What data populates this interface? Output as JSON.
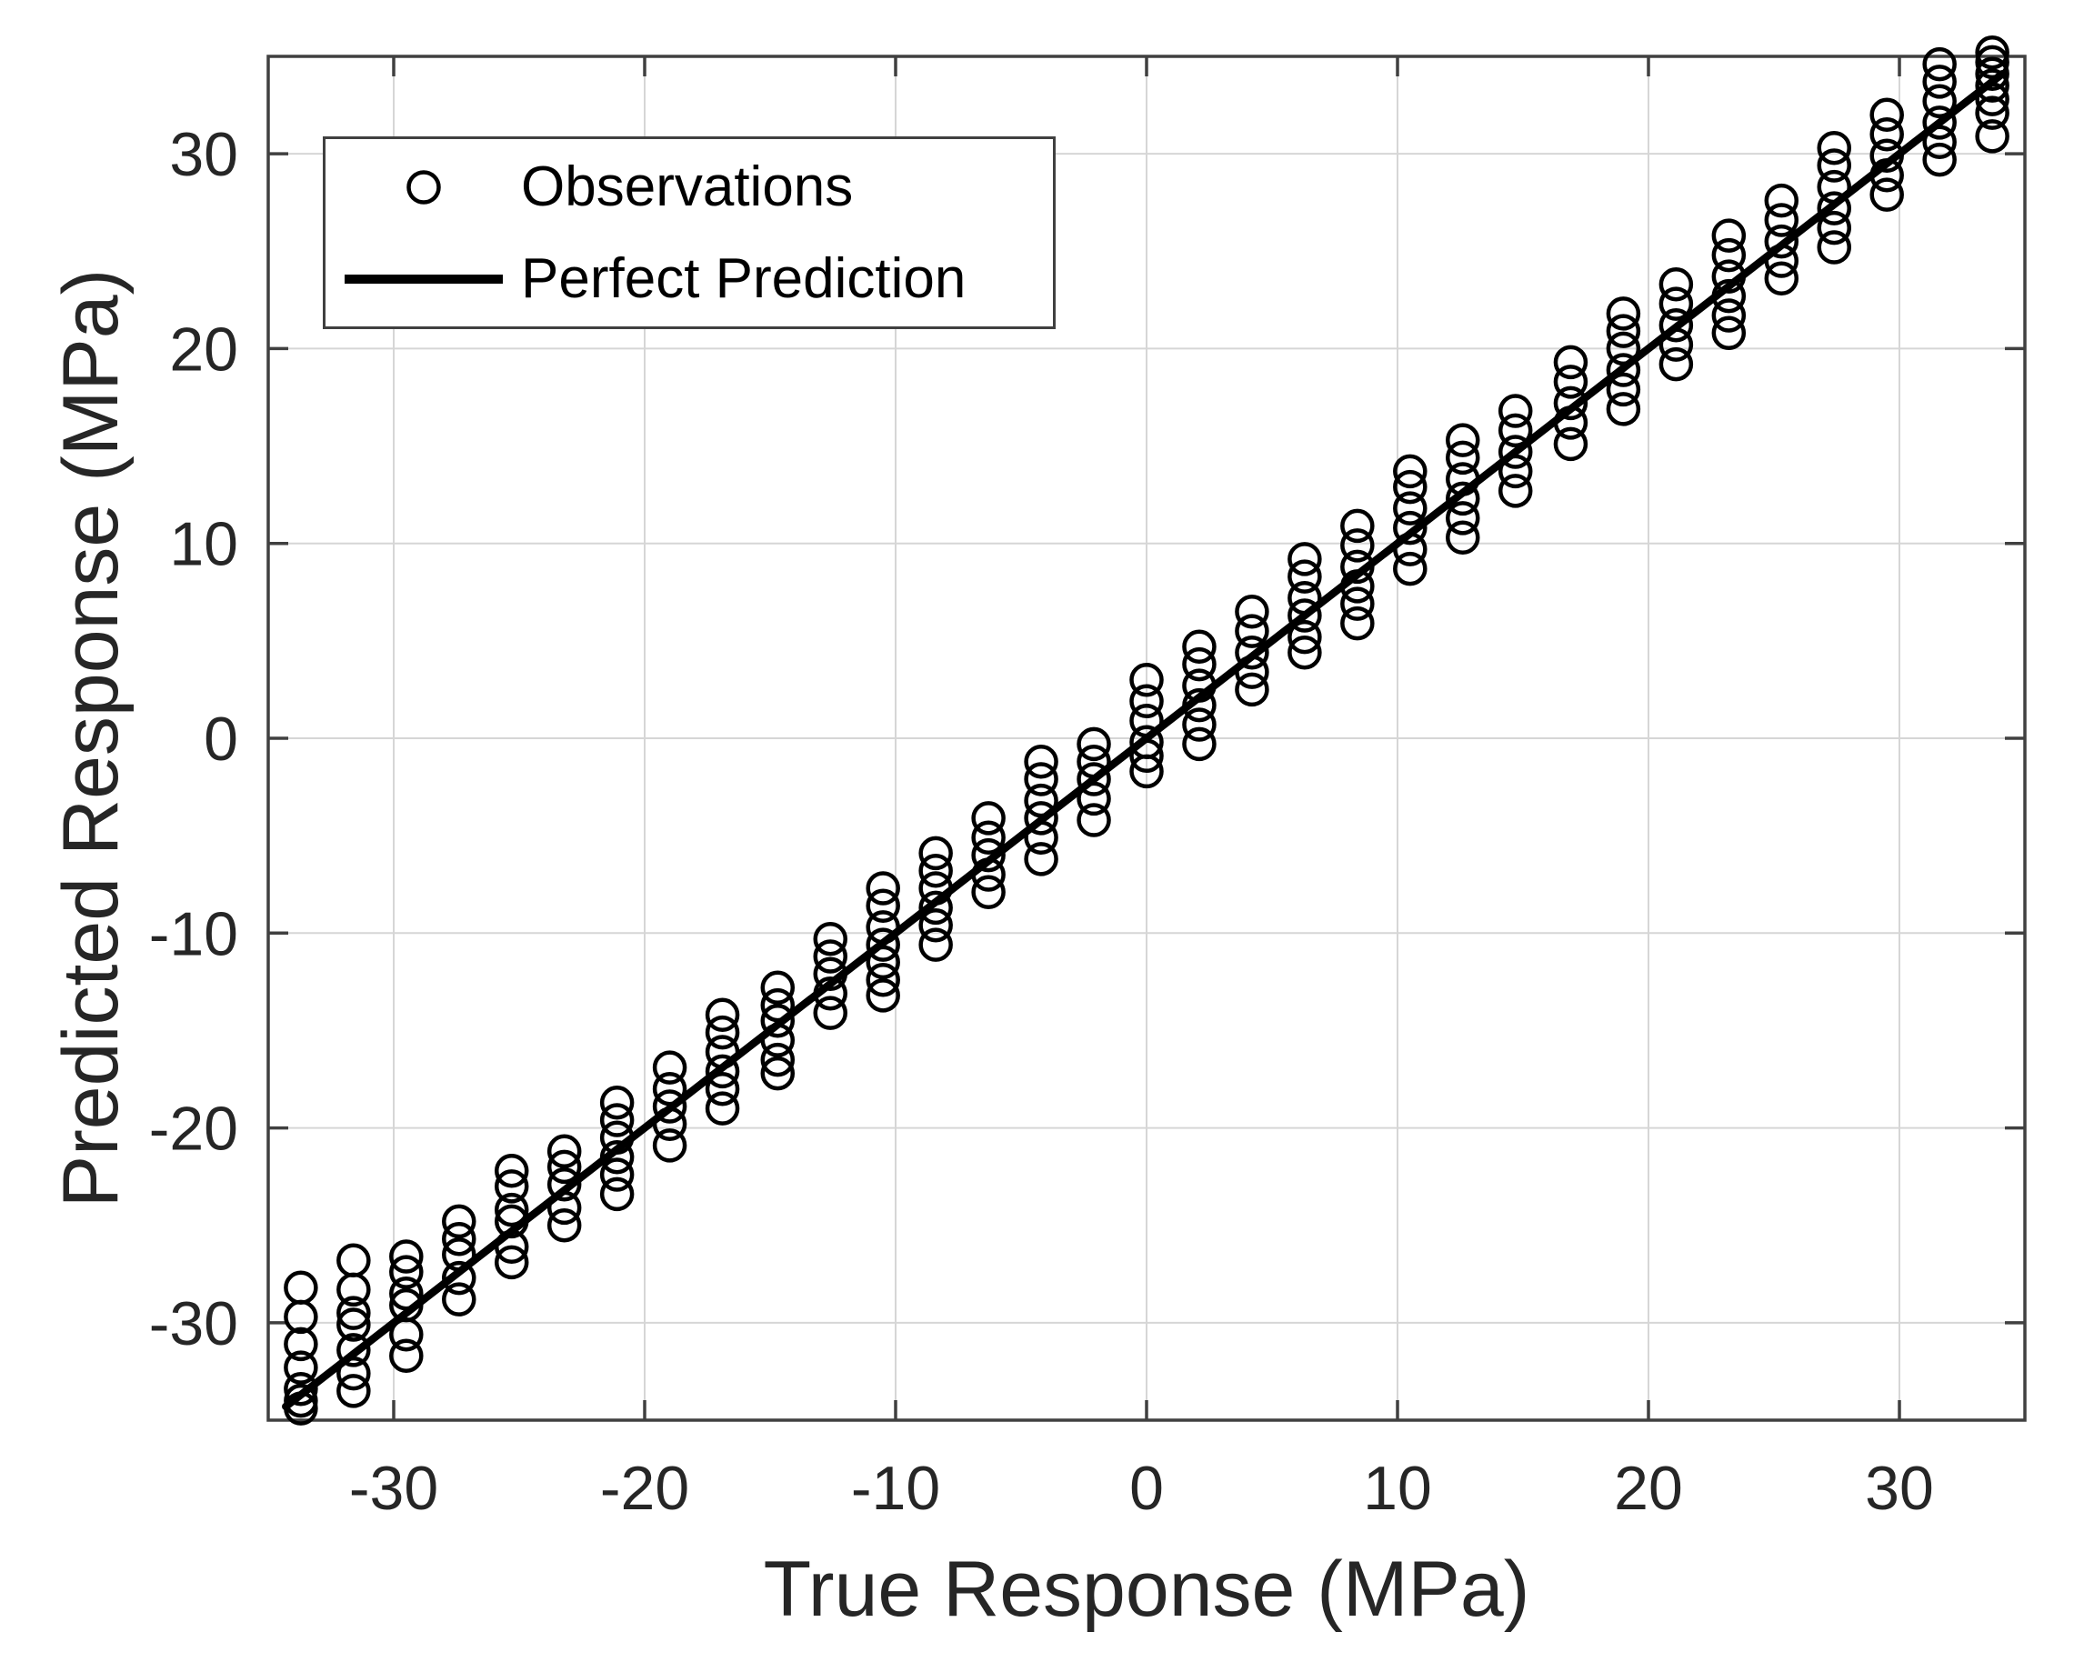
{
  "figure": {
    "background": "#ffffff",
    "marker_color": "#000000",
    "line_color": "#000000",
    "grid_color": "#d6d6d6",
    "spine_color": "#404040",
    "text_color": "#262626"
  },
  "axes": {
    "xlabel": "True Response (MPa)",
    "ylabel": "Predicted Response (MPa)",
    "xlim": [
      -35,
      35
    ],
    "ylim": [
      -35,
      35
    ],
    "xticks": [
      -30,
      -20,
      -10,
      0,
      10,
      20,
      30
    ],
    "yticks": [
      -30,
      -20,
      -10,
      0,
      10,
      20,
      30
    ],
    "xtick_labels": [
      "-30",
      "-20",
      "-10",
      "0",
      "10",
      "20",
      "30"
    ],
    "ytick_labels": [
      "-30",
      "-20",
      "-10",
      "0",
      "10",
      "20",
      "30"
    ],
    "grid": true
  },
  "legend": {
    "items": [
      {
        "marker": "circle",
        "label": "Observations"
      },
      {
        "marker": "line",
        "label": "Perfect Prediction"
      }
    ]
  },
  "chart_data": {
    "type": "scatter",
    "title": "",
    "xlabel": "True Response (MPa)",
    "ylabel": "Predicted Response (MPa)",
    "xlim": [
      -35,
      35
    ],
    "ylim": [
      -35,
      35
    ],
    "grid": "on",
    "legend_position": "northwest",
    "series": [
      {
        "name": "Observations",
        "marker": "open-circle",
        "points": [
          [
            -33.7,
            -28.2
          ],
          [
            -33.7,
            -29.7
          ],
          [
            -33.7,
            -31.1
          ],
          [
            -33.7,
            -32.3
          ],
          [
            -33.7,
            -33.4
          ],
          [
            -33.7,
            -34.0
          ],
          [
            -33.7,
            -34.4
          ],
          [
            -31.6,
            -26.8
          ],
          [
            -31.6,
            -28.3
          ],
          [
            -31.6,
            -29.5
          ],
          [
            -31.6,
            -30.1
          ],
          [
            -31.6,
            -31.4
          ],
          [
            -31.6,
            -32.6
          ],
          [
            -31.6,
            -33.5
          ],
          [
            -29.5,
            -26.6
          ],
          [
            -29.5,
            -27.4
          ],
          [
            -29.5,
            -28.5
          ],
          [
            -29.5,
            -29.1
          ],
          [
            -29.5,
            -30.6
          ],
          [
            -29.5,
            -31.7
          ],
          [
            -27.4,
            -24.8
          ],
          [
            -27.4,
            -25.7
          ],
          [
            -27.4,
            -26.5
          ],
          [
            -27.4,
            -27.7
          ],
          [
            -27.4,
            -28.8
          ],
          [
            -25.3,
            -22.2
          ],
          [
            -25.3,
            -23.0
          ],
          [
            -25.3,
            -24.2
          ],
          [
            -25.3,
            -24.8
          ],
          [
            -25.3,
            -26.1
          ],
          [
            -25.3,
            -26.9
          ],
          [
            -23.2,
            -21.2
          ],
          [
            -23.2,
            -22.0
          ],
          [
            -23.2,
            -22.9
          ],
          [
            -23.2,
            -24.1
          ],
          [
            -23.2,
            -25.0
          ],
          [
            -21.1,
            -18.7
          ],
          [
            -21.1,
            -19.6
          ],
          [
            -21.1,
            -20.5
          ],
          [
            -21.1,
            -21.5
          ],
          [
            -21.1,
            -22.4
          ],
          [
            -21.1,
            -23.4
          ],
          [
            -19.0,
            -16.9
          ],
          [
            -19.0,
            -18.0
          ],
          [
            -19.0,
            -18.9
          ],
          [
            -19.0,
            -19.8
          ],
          [
            -19.0,
            -20.9
          ],
          [
            -16.9,
            -14.2
          ],
          [
            -16.9,
            -15.1
          ],
          [
            -16.9,
            -16.1
          ],
          [
            -16.9,
            -17.1
          ],
          [
            -16.9,
            -18.0
          ],
          [
            -16.9,
            -19.0
          ],
          [
            -14.7,
            -12.8
          ],
          [
            -14.7,
            -13.7
          ],
          [
            -14.7,
            -14.5
          ],
          [
            -14.7,
            -15.5
          ],
          [
            -14.7,
            -16.5
          ],
          [
            -14.7,
            -17.2
          ],
          [
            -12.6,
            -10.3
          ],
          [
            -12.6,
            -11.2
          ],
          [
            -12.6,
            -12.1
          ],
          [
            -12.6,
            -13.1
          ],
          [
            -12.6,
            -14.1
          ],
          [
            -10.5,
            -7.7
          ],
          [
            -10.5,
            -8.6
          ],
          [
            -10.5,
            -9.7
          ],
          [
            -10.5,
            -10.6
          ],
          [
            -10.5,
            -11.5
          ],
          [
            -10.5,
            -12.4
          ],
          [
            -10.5,
            -13.2
          ],
          [
            -8.4,
            -5.9
          ],
          [
            -8.4,
            -6.8
          ],
          [
            -8.4,
            -7.7
          ],
          [
            -8.4,
            -8.7
          ],
          [
            -8.4,
            -9.6
          ],
          [
            -8.4,
            -10.6
          ],
          [
            -6.3,
            -4.1
          ],
          [
            -6.3,
            -5.1
          ],
          [
            -6.3,
            -6.0
          ],
          [
            -6.3,
            -7.0
          ],
          [
            -6.3,
            -7.9
          ],
          [
            -4.2,
            -1.2
          ],
          [
            -4.2,
            -2.1
          ],
          [
            -4.2,
            -3.2
          ],
          [
            -4.2,
            -4.1
          ],
          [
            -4.2,
            -5.1
          ],
          [
            -4.2,
            -6.2
          ],
          [
            -2.1,
            -0.3
          ],
          [
            -2.1,
            -1.2
          ],
          [
            -2.1,
            -2.1
          ],
          [
            -2.1,
            -3.1
          ],
          [
            -2.1,
            -4.2
          ],
          [
            0,
            3.0
          ],
          [
            0,
            1.9
          ],
          [
            0,
            0.9
          ],
          [
            0,
            -0.2
          ],
          [
            0,
            -0.9
          ],
          [
            0,
            -1.7
          ],
          [
            2.1,
            4.7
          ],
          [
            2.1,
            3.8
          ],
          [
            2.1,
            2.7
          ],
          [
            2.1,
            1.7
          ],
          [
            2.1,
            0.7
          ],
          [
            2.1,
            -0.3
          ],
          [
            4.2,
            6.5
          ],
          [
            4.2,
            5.5
          ],
          [
            4.2,
            4.4
          ],
          [
            4.2,
            3.4
          ],
          [
            4.2,
            2.5
          ],
          [
            6.3,
            9.2
          ],
          [
            6.3,
            8.3
          ],
          [
            6.3,
            7.2
          ],
          [
            6.3,
            6.3
          ],
          [
            6.3,
            5.2
          ],
          [
            6.3,
            4.4
          ],
          [
            8.4,
            10.9
          ],
          [
            8.4,
            9.9
          ],
          [
            8.4,
            8.8
          ],
          [
            8.4,
            7.8
          ],
          [
            8.4,
            6.9
          ],
          [
            8.4,
            5.9
          ],
          [
            10.5,
            13.7
          ],
          [
            10.5,
            12.9
          ],
          [
            10.5,
            11.8
          ],
          [
            10.5,
            10.8
          ],
          [
            10.5,
            9.7
          ],
          [
            10.5,
            8.7
          ],
          [
            12.6,
            15.3
          ],
          [
            12.6,
            14.4
          ],
          [
            12.6,
            13.3
          ],
          [
            12.6,
            12.3
          ],
          [
            12.6,
            11.3
          ],
          [
            12.6,
            10.3
          ],
          [
            14.7,
            16.8
          ],
          [
            14.7,
            15.8
          ],
          [
            14.7,
            14.7
          ],
          [
            14.7,
            13.7
          ],
          [
            14.7,
            12.7
          ],
          [
            16.9,
            19.3
          ],
          [
            16.9,
            18.3
          ],
          [
            16.9,
            17.2
          ],
          [
            16.9,
            16.2
          ],
          [
            16.9,
            15.1
          ],
          [
            19.0,
            21.8
          ],
          [
            19.0,
            20.9
          ],
          [
            19.0,
            20.0
          ],
          [
            19.0,
            18.9
          ],
          [
            19.0,
            17.9
          ],
          [
            19.0,
            16.9
          ],
          [
            21.1,
            23.3
          ],
          [
            21.1,
            22.3
          ],
          [
            21.1,
            21.2
          ],
          [
            21.1,
            20.2
          ],
          [
            21.1,
            19.2
          ],
          [
            23.2,
            25.8
          ],
          [
            23.2,
            24.8
          ],
          [
            23.2,
            23.7
          ],
          [
            23.2,
            22.7
          ],
          [
            23.2,
            21.7
          ],
          [
            23.2,
            20.8
          ],
          [
            25.3,
            27.6
          ],
          [
            25.3,
            26.6
          ],
          [
            25.3,
            25.5
          ],
          [
            25.3,
            24.5
          ],
          [
            25.3,
            23.6
          ],
          [
            27.4,
            30.3
          ],
          [
            27.4,
            29.4
          ],
          [
            27.4,
            28.3
          ],
          [
            27.4,
            27.2
          ],
          [
            27.4,
            26.2
          ],
          [
            27.4,
            25.2
          ],
          [
            29.5,
            32.0
          ],
          [
            29.5,
            31.0
          ],
          [
            29.5,
            29.9
          ],
          [
            29.5,
            28.9
          ],
          [
            29.5,
            27.9
          ],
          [
            31.6,
            34.6
          ],
          [
            31.6,
            33.7
          ],
          [
            31.6,
            32.7
          ],
          [
            31.6,
            31.6
          ],
          [
            31.6,
            30.6
          ],
          [
            31.6,
            29.7
          ],
          [
            33.7,
            35.2
          ],
          [
            33.7,
            34.7
          ],
          [
            33.7,
            34.1
          ],
          [
            33.7,
            33.5
          ],
          [
            33.7,
            32.8
          ],
          [
            33.7,
            32.1
          ],
          [
            33.7,
            30.9
          ]
        ]
      },
      {
        "name": "Perfect Prediction",
        "type": "line",
        "x": [
          -34.3,
          34.1
        ],
        "y": [
          -34.3,
          34.1
        ]
      }
    ]
  }
}
